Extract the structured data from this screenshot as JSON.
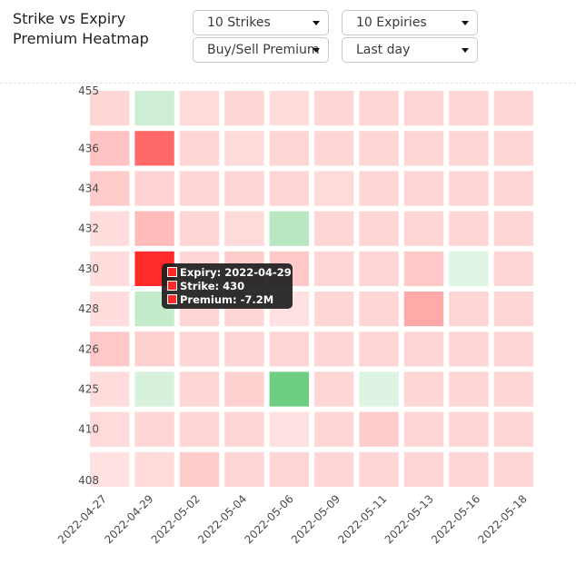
{
  "header": {
    "title": "Strike vs Expiry Premium Heatmap",
    "title_line1": "Strike vs Expiry",
    "title_line2": "Premium Heatmap",
    "strikes_select": "10 Strikes",
    "expiries_select": "10 Expiries",
    "side_select": "Buy/Sell Premium",
    "period_select": "Last day"
  },
  "tooltip": {
    "expiry": "Expiry: 2022-04-29",
    "strike": "Strike: 430",
    "premium": "Premium: -7.2M"
  },
  "colors": {
    "negative": "#ff2a2a",
    "positive": "#2db84a",
    "neutral_light": "#fde3e3"
  },
  "chart_data": {
    "type": "heatmap",
    "x_tick_labels": [
      "2022-04-27",
      "2022-04-29",
      "2022-05-02",
      "2022-05-04",
      "2022-05-06",
      "2022-05-09",
      "2022-05-11",
      "2022-05-13",
      "2022-05-16",
      "2022-05-18"
    ],
    "y_tick_labels": [
      "455",
      "436",
      "434",
      "432",
      "430",
      "428",
      "426",
      "425",
      "410",
      "408"
    ],
    "value_scale_max_abs": 7.2,
    "value_unit": "M",
    "values": [
      [
        -0.6,
        0.9,
        -0.5,
        -0.6,
        -0.4,
        -0.6,
        -0.6,
        -0.6,
        -0.6,
        -0.6
      ],
      [
        -1.2,
        -4.6,
        -0.6,
        -0.5,
        -0.6,
        -0.6,
        -0.6,
        -0.6,
        -0.6,
        -0.6
      ],
      [
        -0.9,
        -0.7,
        -0.6,
        -0.6,
        -0.6,
        -0.5,
        -0.6,
        -0.6,
        -0.6,
        -0.6
      ],
      [
        -0.4,
        -1.5,
        -0.6,
        -0.5,
        1.6,
        -0.6,
        -0.6,
        -0.6,
        -0.6,
        -0.6
      ],
      [
        -0.4,
        -7.2,
        -0.6,
        -0.9,
        -1.0,
        -0.6,
        -0.6,
        -1.0,
        0.3,
        -0.6
      ],
      [
        -0.4,
        1.2,
        -0.6,
        -0.6,
        -0.3,
        -0.6,
        -0.6,
        -2.1,
        -0.6,
        -0.6
      ],
      [
        -1.0,
        -0.8,
        -0.6,
        -0.6,
        -0.6,
        -0.6,
        -0.6,
        -0.6,
        -0.6,
        -0.6
      ],
      [
        -0.4,
        0.6,
        -0.6,
        -0.8,
        4.5,
        -0.6,
        0.4,
        -0.6,
        -0.6,
        -0.6
      ],
      [
        -0.5,
        -0.6,
        -0.6,
        -0.6,
        -0.3,
        -0.6,
        -0.9,
        -0.6,
        -0.6,
        -0.6
      ],
      [
        -0.3,
        -0.5,
        -0.9,
        -0.6,
        -0.6,
        -0.6,
        -0.6,
        -0.6,
        -0.6,
        -0.6
      ]
    ],
    "highlight": {
      "row": 4,
      "col": 1
    },
    "grid": false,
    "legend": "none"
  }
}
